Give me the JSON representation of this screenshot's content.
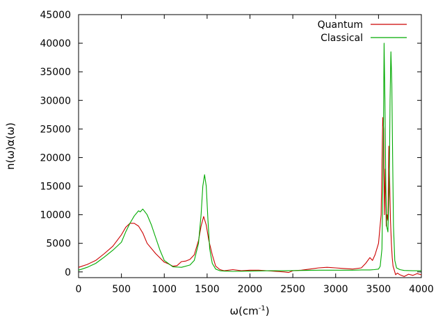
{
  "chart_data": {
    "type": "line",
    "title": "",
    "xlabel": "ω(cm",
    "xlabel_sup": "-1",
    "xlabel_close": ")",
    "ylabel": "n(ω)α(ω)",
    "xlim": [
      0,
      4000
    ],
    "ylim": [
      -1000,
      45000
    ],
    "xticks": [
      0,
      500,
      1000,
      1500,
      2000,
      2500,
      3000,
      3500,
      4000
    ],
    "yticks": [
      0,
      5000,
      10000,
      15000,
      20000,
      25000,
      30000,
      35000,
      40000,
      45000
    ],
    "grid": false,
    "legend_position": "top-right",
    "series": [
      {
        "name": "Quantum",
        "color": "#cc0000",
        "x": [
          0,
          100,
          200,
          300,
          400,
          500,
          550,
          600,
          650,
          700,
          750,
          800,
          900,
          1000,
          1050,
          1100,
          1150,
          1200,
          1250,
          1300,
          1350,
          1400,
          1430,
          1460,
          1490,
          1520,
          1560,
          1600,
          1650,
          1700,
          1800,
          1900,
          2000,
          2100,
          2200,
          2300,
          2400,
          2450,
          2500,
          2600,
          2700,
          2800,
          2900,
          3000,
          3100,
          3200,
          3300,
          3350,
          3400,
          3430,
          3460,
          3500,
          3530,
          3550,
          3560,
          3570,
          3580,
          3590,
          3600,
          3610,
          3620,
          3630,
          3640,
          3650,
          3660,
          3670,
          3680,
          3690,
          3700,
          3720,
          3750,
          3800,
          3850,
          3900,
          3950,
          4000
        ],
        "values": [
          800,
          1300,
          2000,
          3200,
          4500,
          6500,
          7800,
          8500,
          8500,
          8000,
          6800,
          5000,
          3200,
          1700,
          1400,
          1000,
          1100,
          1800,
          1900,
          2200,
          3000,
          5500,
          8000,
          9700,
          8200,
          5500,
          3000,
          1000,
          400,
          200,
          400,
          200,
          300,
          300,
          200,
          100,
          0,
          -100,
          200,
          300,
          500,
          700,
          800,
          700,
          600,
          500,
          700,
          1500,
          2500,
          2000,
          3000,
          5000,
          10000,
          27000,
          25000,
          10000,
          18000,
          8000,
          10000,
          9000,
          22000,
          16000,
          9000,
          5000,
          2500,
          1000,
          500,
          0,
          -500,
          -200,
          -500,
          -800,
          -400,
          -600,
          -300,
          -500
        ]
      },
      {
        "name": "Classical",
        "color": "#00aa00",
        "x": [
          0,
          100,
          200,
          300,
          400,
          500,
          550,
          600,
          650,
          700,
          720,
          750,
          800,
          850,
          900,
          950,
          1000,
          1100,
          1200,
          1300,
          1350,
          1400,
          1430,
          1450,
          1470,
          1490,
          1510,
          1530,
          1560,
          1600,
          1650,
          1700,
          1800,
          2000,
          2200,
          2400,
          2600,
          2800,
          3000,
          3200,
          3300,
          3400,
          3450,
          3500,
          3520,
          3540,
          3555,
          3565,
          3575,
          3585,
          3595,
          3610,
          3625,
          3635,
          3645,
          3655,
          3665,
          3675,
          3690,
          3710,
          3750,
          3800,
          3900,
          4000
        ],
        "values": [
          300,
          800,
          1500,
          2600,
          3800,
          5200,
          7000,
          8500,
          9800,
          10700,
          10500,
          11000,
          10000,
          8200,
          6000,
          3800,
          2000,
          900,
          800,
          1200,
          2000,
          5000,
          10000,
          15000,
          17000,
          15000,
          9000,
          4000,
          1500,
          500,
          200,
          150,
          100,
          150,
          200,
          200,
          250,
          300,
          300,
          300,
          350,
          350,
          400,
          500,
          1000,
          4000,
          20000,
          40000,
          30000,
          15000,
          8000,
          7000,
          15000,
          30000,
          38500,
          33000,
          20000,
          8000,
          2000,
          700,
          400,
          250,
          200,
          200
        ]
      }
    ]
  }
}
